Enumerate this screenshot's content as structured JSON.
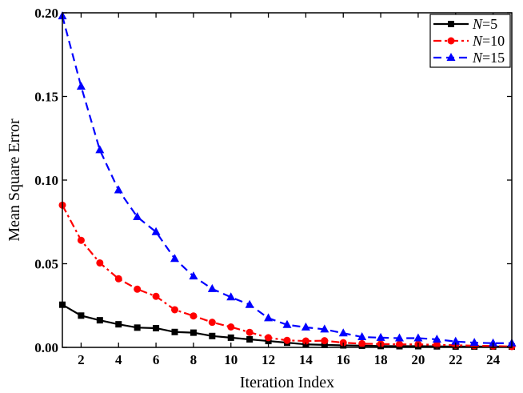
{
  "chart_data": {
    "type": "line",
    "xlabel": "Iteration Index",
    "ylabel": "Mean Square Error",
    "xlim": [
      1,
      25
    ],
    "ylim": [
      0,
      0.2
    ],
    "xticks": [
      2,
      4,
      6,
      8,
      10,
      12,
      14,
      16,
      18,
      20,
      22,
      24
    ],
    "yticks": [
      0.0,
      0.05,
      0.1,
      0.15,
      0.2
    ],
    "ytick_labels": [
      "0.00",
      "0.05",
      "0.10",
      "0.15",
      "0.20"
    ],
    "legend": {
      "position": "top-right"
    },
    "grid": false,
    "x": [
      1,
      2,
      3,
      4,
      5,
      6,
      7,
      8,
      9,
      10,
      11,
      12,
      13,
      14,
      15,
      16,
      17,
      18,
      19,
      20,
      21,
      22,
      23,
      24,
      25
    ],
    "series": [
      {
        "name": "N=5",
        "legend_italic": "N",
        "legend_rest": "=5",
        "color": "#000000",
        "dash": "",
        "marker": "square",
        "values": [
          0.0255,
          0.019,
          0.0162,
          0.0138,
          0.0118,
          0.0115,
          0.0092,
          0.0088,
          0.0068,
          0.0058,
          0.0048,
          0.0038,
          0.0028,
          0.0018,
          0.0015,
          0.0012,
          0.001,
          0.0008,
          0.0007,
          0.0007,
          0.0006,
          0.0005,
          0.0005,
          0.0005,
          0.0005
        ]
      },
      {
        "name": "N=10",
        "legend_italic": "N",
        "legend_rest": "=10",
        "color": "#ff0000",
        "dash": "10,4,3,4",
        "marker": "circle",
        "values": [
          0.085,
          0.064,
          0.0505,
          0.041,
          0.0348,
          0.0305,
          0.0225,
          0.0188,
          0.015,
          0.0122,
          0.009,
          0.0058,
          0.0042,
          0.0038,
          0.004,
          0.0028,
          0.0022,
          0.002,
          0.0018,
          0.0018,
          0.0015,
          0.0013,
          0.001,
          0.0008,
          0.0005
        ]
      },
      {
        "name": "N=15",
        "legend_italic": "N",
        "legend_rest": "=15",
        "color": "#0000ff",
        "dash": "10,6",
        "marker": "triangle",
        "values": [
          0.198,
          0.156,
          0.118,
          0.094,
          0.078,
          0.069,
          0.053,
          0.0425,
          0.035,
          0.03,
          0.0255,
          0.0175,
          0.0135,
          0.012,
          0.0108,
          0.0085,
          0.0062,
          0.0058,
          0.0055,
          0.0055,
          0.0048,
          0.0035,
          0.0028,
          0.0025,
          0.0025
        ]
      }
    ]
  }
}
